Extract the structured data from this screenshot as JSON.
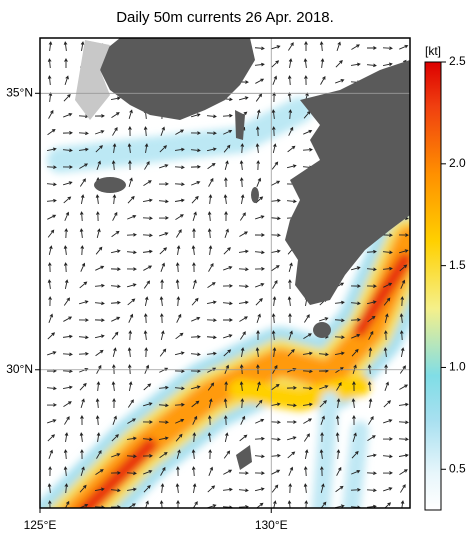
{
  "chart_data": {
    "type": "map",
    "title": "Daily 50m currents 26 Apr. 2018.",
    "xlim": [
      125,
      133
    ],
    "ylim": [
      27.5,
      36
    ],
    "xticks": [
      {
        "value": 125,
        "label": "125°E"
      },
      {
        "value": 130,
        "label": "130°E"
      }
    ],
    "yticks": [
      {
        "value": 30,
        "label": "30°N"
      },
      {
        "value": 35,
        "label": "35°N"
      }
    ],
    "grid": true,
    "colorbar": {
      "label": "[kt]",
      "lim": [
        0.3,
        2.5
      ],
      "ticks": [
        0.5,
        {
          "value": 1,
          "label": "1.0"
        },
        1.5,
        {
          "value": 2,
          "label": "2.0"
        },
        2.5
      ]
    }
  }
}
